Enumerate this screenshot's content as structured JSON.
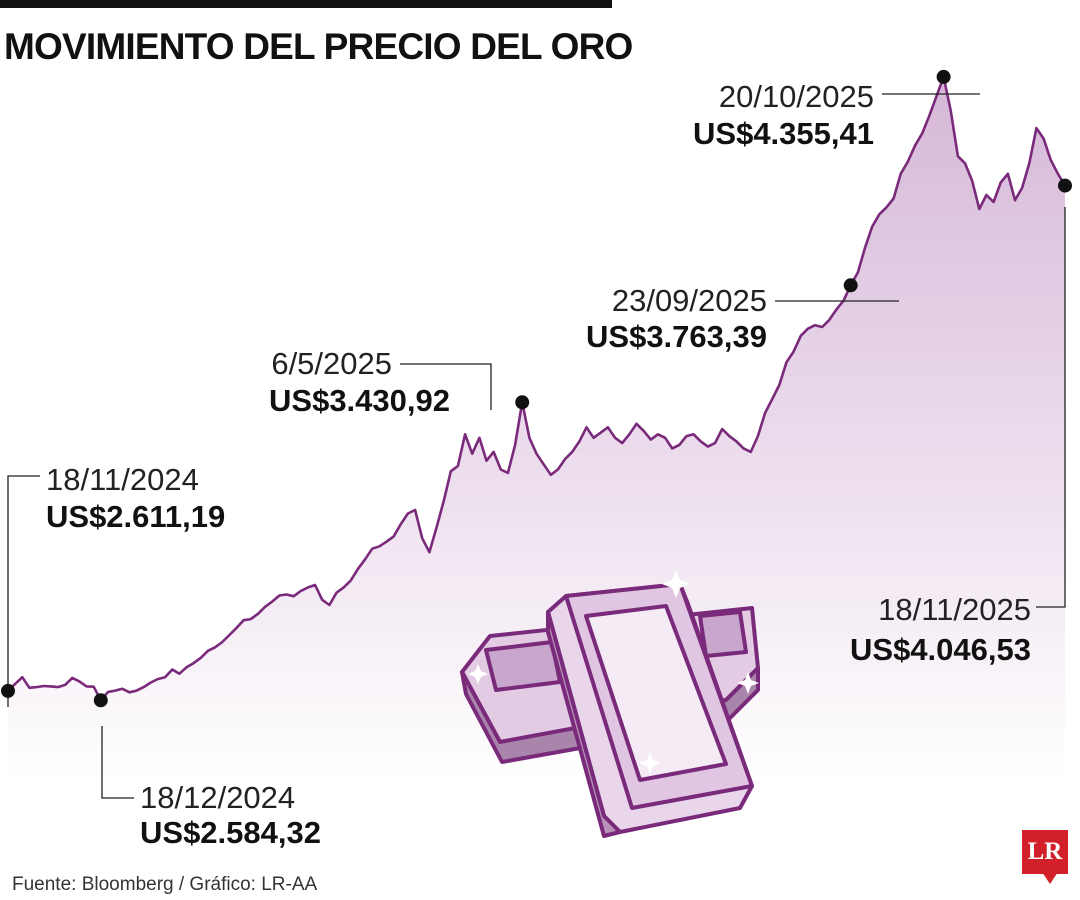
{
  "header": {
    "title": "MOVIMIENTO DEL PRECIO DEL ORO"
  },
  "footer": {
    "source": "Fuente: Bloomberg / Gráfico: LR-AA",
    "logo_text": "LR"
  },
  "colors": {
    "line": "#7a2a7a",
    "area_top": "#d6b8d8",
    "area_bottom": "#ffffff",
    "markers": "#111111",
    "logo": "#d1202a"
  },
  "illustration": {
    "name": "gold-bars-icon"
  },
  "chart_data": {
    "type": "area",
    "title": "MOVIMIENTO DEL PRECIO DEL ORO",
    "xlabel": "",
    "ylabel": "",
    "x_range": [
      "18/11/2024",
      "18/11/2025"
    ],
    "ylim": [
      2250,
      4500
    ],
    "grid": false,
    "legend": "none",
    "series": [
      {
        "values": [
          2611.19,
          2631,
          2650,
          2620,
          2622,
          2625,
          2624,
          2622,
          2628,
          2648,
          2638,
          2624,
          2623,
          2584.32,
          2608,
          2612,
          2617,
          2607,
          2612,
          2622,
          2635,
          2645,
          2650,
          2672,
          2660,
          2678,
          2690,
          2705,
          2725,
          2735,
          2750,
          2770,
          2790,
          2812,
          2815,
          2830,
          2850,
          2865,
          2882,
          2885,
          2880,
          2895,
          2905,
          2912,
          2870,
          2855,
          2890,
          2905,
          2925,
          2958,
          2985,
          3015,
          3022,
          3035,
          3050,
          3085,
          3115,
          3125,
          3045,
          3005,
          3075,
          3150,
          3235,
          3250,
          3340,
          3285,
          3330,
          3265,
          3290,
          3240,
          3230,
          3310,
          3430.92,
          3330,
          3285,
          3255,
          3225,
          3240,
          3270,
          3290,
          3320,
          3360,
          3330,
          3345,
          3360,
          3330,
          3315,
          3340,
          3370,
          3350,
          3325,
          3340,
          3330,
          3300,
          3310,
          3335,
          3340,
          3320,
          3305,
          3315,
          3355,
          3335,
          3320,
          3300,
          3290,
          3335,
          3400,
          3440,
          3480,
          3545,
          3575,
          3620,
          3640,
          3650,
          3645,
          3665,
          3695,
          3720,
          3763.39,
          3800,
          3870,
          3930,
          3965,
          3985,
          4010,
          4080,
          4115,
          4160,
          4195,
          4245,
          4300,
          4355.41,
          4260,
          4130,
          4110,
          4060,
          3980,
          4020,
          4000,
          4055,
          4080,
          4005,
          4040,
          4110,
          4210,
          4180,
          4120,
          4080,
          4046.53
        ]
      }
    ],
    "annotations": [
      {
        "date": "18/11/2024",
        "value": "US$2.611,19"
      },
      {
        "date": "18/12/2024",
        "value": "US$2.584,32"
      },
      {
        "date": "6/5/2025",
        "value": "US$3.430,92"
      },
      {
        "date": "23/09/2025",
        "value": "US$3.763,39"
      },
      {
        "date": "20/10/2025",
        "value": "US$4.355,41"
      },
      {
        "date": "18/11/2025",
        "value": "US$4.046,53"
      }
    ]
  }
}
